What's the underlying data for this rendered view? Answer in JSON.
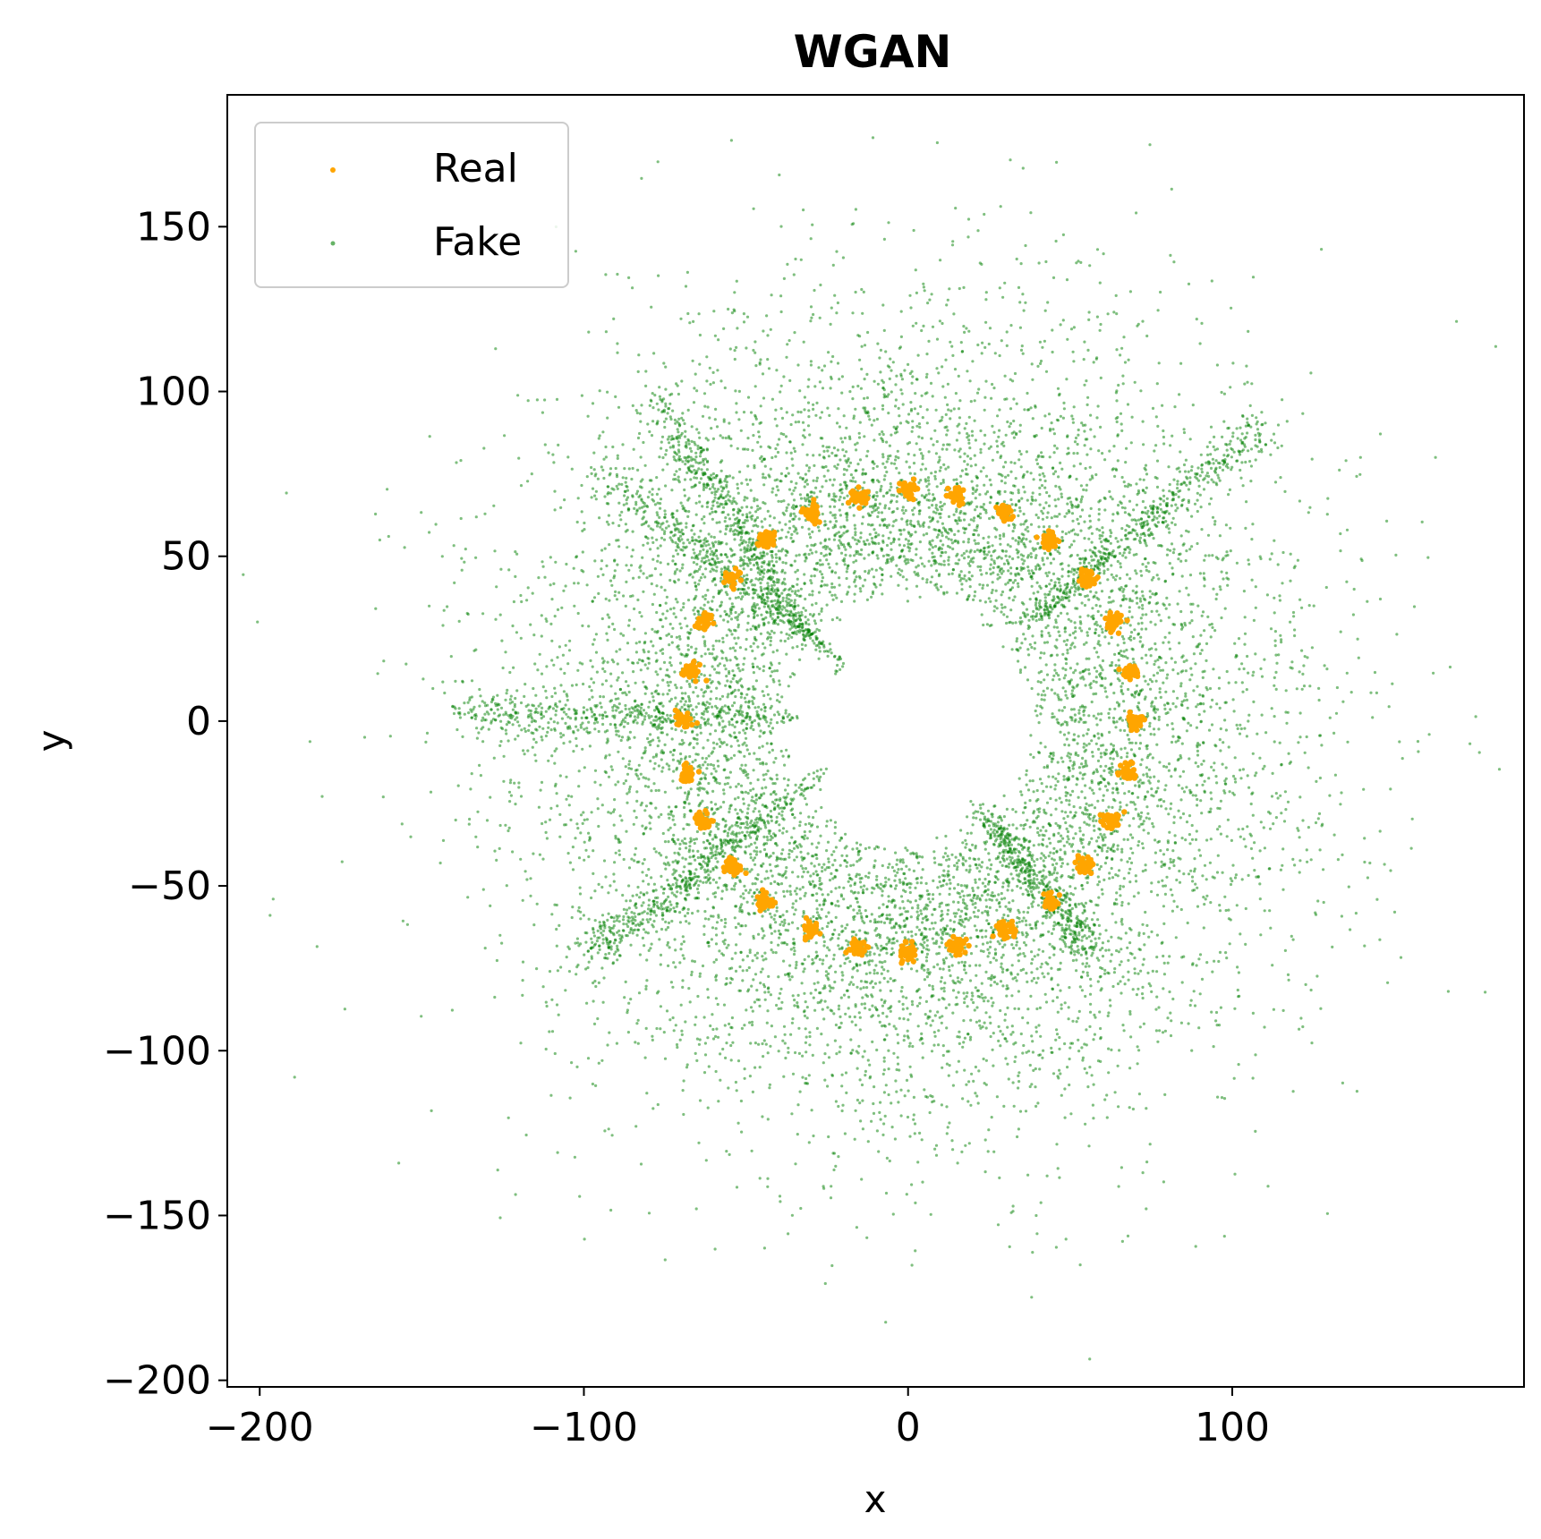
{
  "chart_data": {
    "type": "scatter",
    "title": "WGAN",
    "xlabel": "x",
    "ylabel": "y",
    "xlim": [
      -210,
      190
    ],
    "ylim": [
      -202,
      190
    ],
    "xticks": [
      -200,
      -100,
      0,
      100
    ],
    "xtick_labels": [
      "−200",
      "−100",
      "0",
      "100"
    ],
    "yticks": [
      -200,
      -150,
      -100,
      -50,
      0,
      50,
      100,
      150
    ],
    "ytick_labels": [
      "−200",
      "−150",
      "−100",
      "−50",
      "0",
      "50",
      "100",
      "150"
    ],
    "grid": false,
    "legend_position": "top-left",
    "series": [
      {
        "name": "Real",
        "color": "#FFA500",
        "points": [
          [
            70.0,
            0.0
          ],
          [
            68.4,
            15.3
          ],
          [
            63.4,
            29.7
          ],
          [
            55.2,
            43.1
          ],
          [
            43.6,
            54.8
          ],
          [
            29.6,
            63.4
          ],
          [
            15.0,
            68.4
          ],
          [
            0.0,
            70.0
          ],
          [
            -15.0,
            68.4
          ],
          [
            -29.6,
            63.4
          ],
          [
            -43.6,
            54.8
          ],
          [
            -54.2,
            43.3
          ],
          [
            -63.0,
            30.3
          ],
          [
            -67.2,
            15.0
          ],
          [
            -69.0,
            0.0
          ],
          [
            -68.0,
            -15.7
          ],
          [
            -63.1,
            -30.4
          ],
          [
            -54.1,
            -44.2
          ],
          [
            -43.7,
            -54.6
          ],
          [
            -30.0,
            -63.1
          ],
          [
            -15.4,
            -68.6
          ],
          [
            0.0,
            -70.0
          ],
          [
            15.0,
            -68.4
          ],
          [
            30.0,
            -63.1
          ],
          [
            43.6,
            -54.8
          ],
          [
            54.0,
            -44.0
          ],
          [
            62.5,
            -30.0
          ],
          [
            68.0,
            -15.7
          ]
        ]
      },
      {
        "name": "Fake",
        "color": "#008000",
        "description": "dense green cloud of ~12000 generated samples spread over an annulus around the origin, concentrated on eight radial streaks; outliers reach about ±190",
        "summary": {
          "count": 12000,
          "x_range": [
            -192,
            172
          ],
          "y_range": [
            -184,
            173
          ],
          "streak_endpoints": [
            [
              [
                -30,
                25
              ],
              [
                -76,
                95
              ]
            ],
            [
              [
                -20,
                17
              ],
              [
                -95,
                76
              ]
            ],
            [
              [
                -34,
                1
              ],
              [
                -140,
                2
              ]
            ],
            [
              [
                -25,
                -15
              ],
              [
                -100,
                -72
              ]
            ],
            [
              [
                20,
                -24
              ],
              [
                57,
                -70
              ]
            ],
            [
              [
                35,
                28
              ],
              [
                110,
                90
              ]
            ]
          ]
        }
      }
    ]
  }
}
